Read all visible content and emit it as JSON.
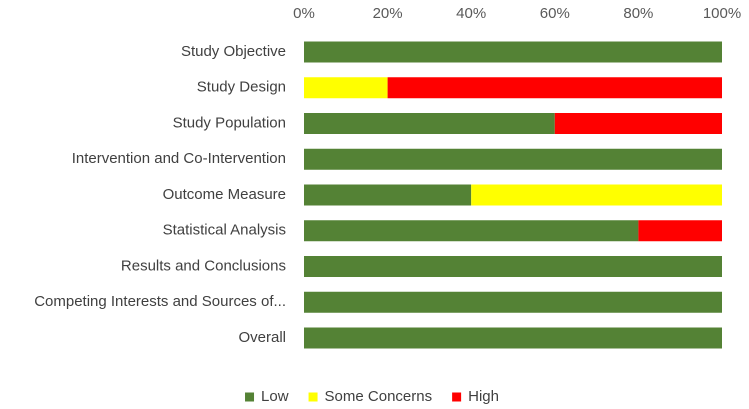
{
  "chart_data": {
    "type": "bar",
    "orientation": "horizontal",
    "stacked": true,
    "percent_axis": true,
    "title": "",
    "xlabel": "",
    "ylabel": "",
    "xlim": [
      0,
      100
    ],
    "ticks": [
      "0%",
      "20%",
      "40%",
      "60%",
      "80%",
      "100%"
    ],
    "tick_values": [
      0,
      20,
      40,
      60,
      80,
      100
    ],
    "axis_position": "top",
    "grid": false,
    "categories": [
      "Study Objective",
      "Study Design",
      "Study Population",
      "Intervention and Co-Intervention",
      "Outcome Measure",
      "Statistical Analysis",
      "Results and Conclusions",
      "Competing Interests and Sources of...",
      "Overall"
    ],
    "series": [
      {
        "name": "Low",
        "color": "#548235",
        "values": [
          100,
          0,
          60,
          100,
          40,
          80,
          100,
          100,
          100
        ]
      },
      {
        "name": "Some Concerns",
        "color": "#FFFF00",
        "values": [
          0,
          20,
          0,
          0,
          60,
          0,
          0,
          0,
          0
        ]
      },
      {
        "name": "High",
        "color": "#FF0000",
        "values": [
          0,
          80,
          40,
          0,
          0,
          20,
          0,
          0,
          0
        ]
      }
    ],
    "legend_position": "bottom"
  }
}
